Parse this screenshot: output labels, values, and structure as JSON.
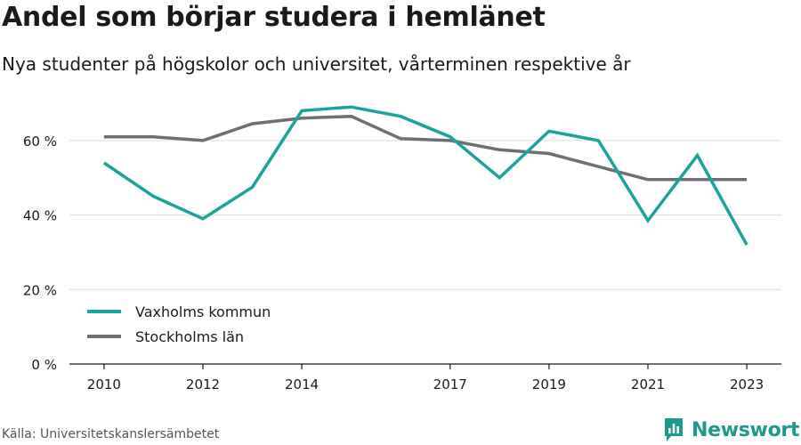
{
  "title": "Andel som börjar studera i hemlänet",
  "subtitle": "Nya studenter på högskolor och universitet, vårterminen respektive år",
  "source": "Källa: Universitetskanslersämbetet",
  "brand": {
    "name": "Newsworthy",
    "icon": "bar-chart-logo-icon",
    "color": "#1d9a8e"
  },
  "chart_data": {
    "type": "line",
    "x_ticks": [
      2010,
      2012,
      2014,
      2017,
      2019,
      2021,
      2023
    ],
    "y_ticks": [
      0,
      20,
      40,
      60
    ],
    "y_tick_labels": [
      "0 %",
      "20 %",
      "40 %",
      "60 %"
    ],
    "xlim": [
      2009.3,
      2023.7
    ],
    "ylim": [
      0,
      70
    ],
    "grid": "horizontal",
    "legend_position": "bottom-left",
    "series": [
      {
        "name": "Vaxholms kommun",
        "color": "#1aa39a",
        "x": [
          2010,
          2011,
          2012,
          2013,
          2014,
          2015,
          2016,
          2017,
          2018,
          2019,
          2020,
          2021,
          2022,
          2023
        ],
        "values": [
          54,
          45,
          39,
          47.5,
          68,
          69,
          66.5,
          61,
          50,
          62.5,
          60,
          38.5,
          56,
          32
        ]
      },
      {
        "name": "Stockholms län",
        "color": "#6e6e73",
        "x": [
          2010,
          2011,
          2012,
          2013,
          2014,
          2015,
          2016,
          2017,
          2018,
          2019,
          2020,
          2021,
          2022,
          2023
        ],
        "values": [
          61,
          61,
          60,
          64.5,
          66,
          66.5,
          60.5,
          60,
          57.5,
          56.5,
          53,
          49.5,
          49.5,
          49.5
        ]
      }
    ]
  }
}
